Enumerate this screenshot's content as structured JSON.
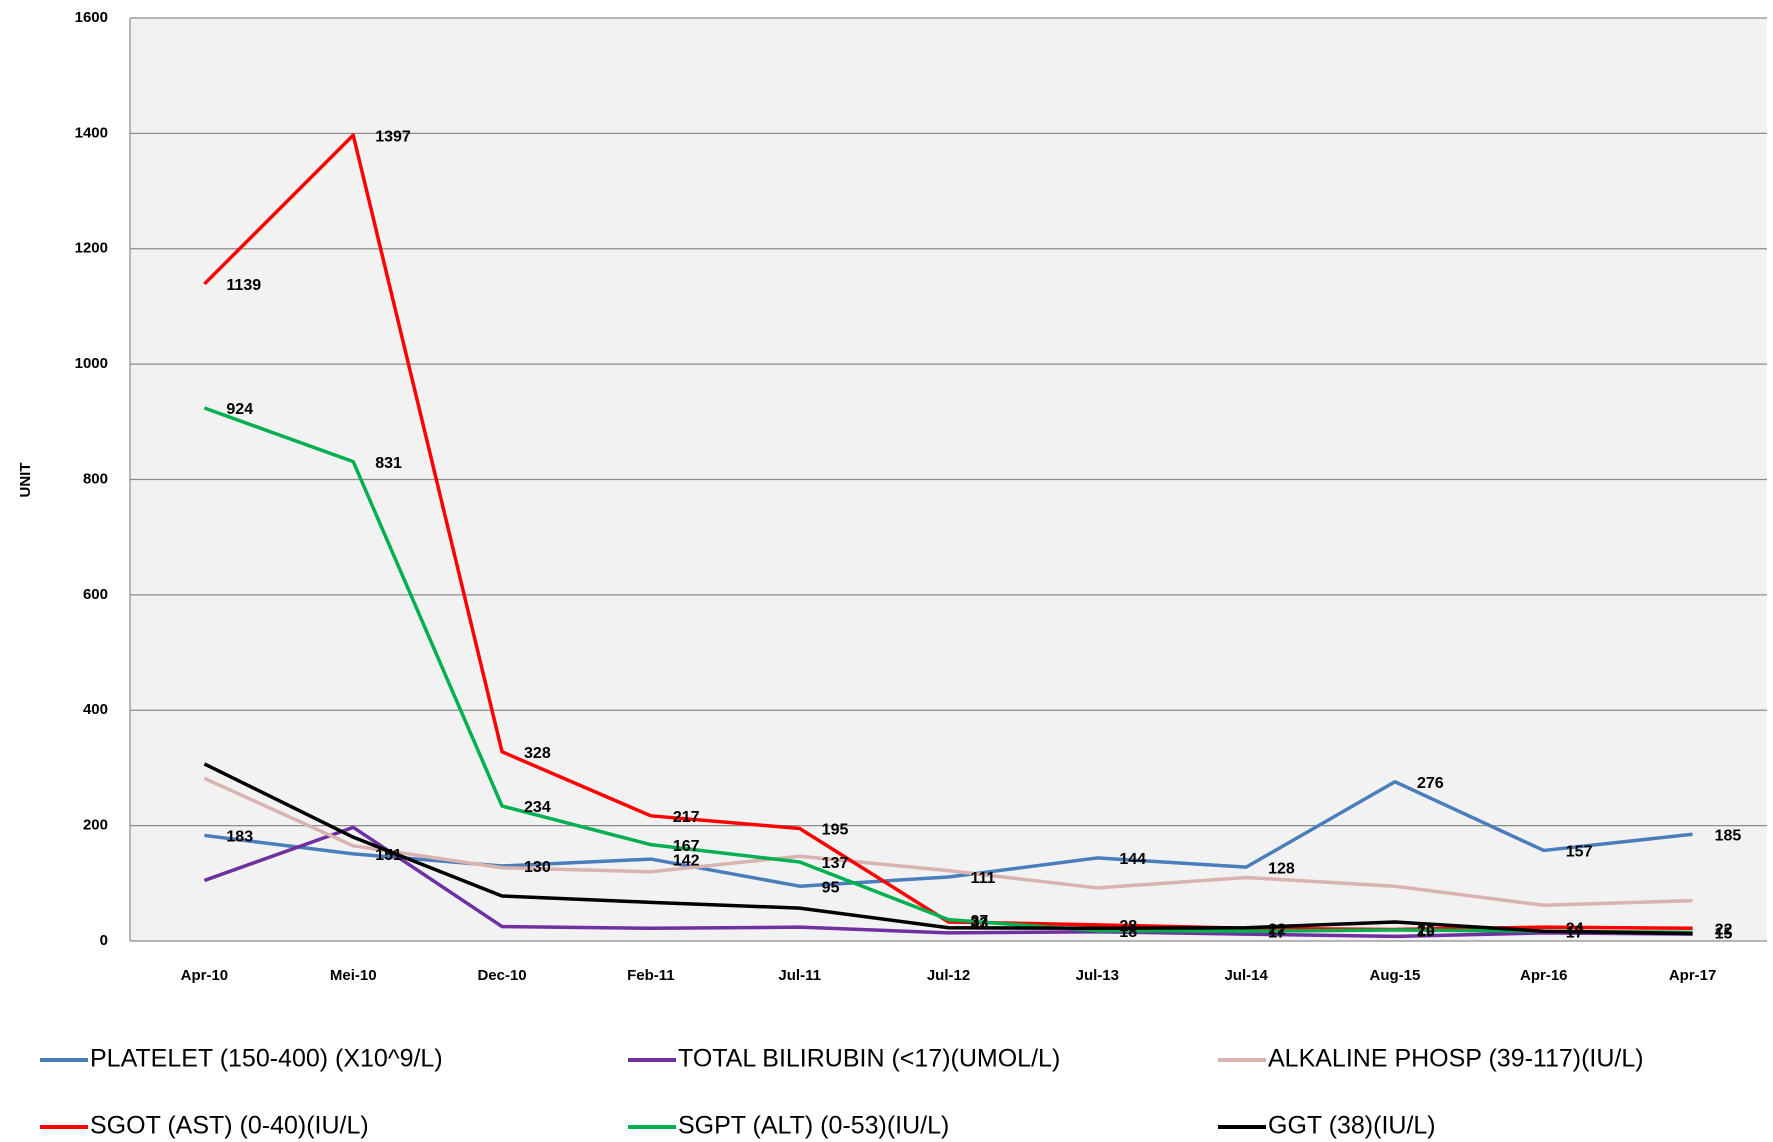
{
  "chart_data": {
    "type": "line",
    "y_label": "UNIT",
    "categories": [
      "Apr-10",
      "Mei-10",
      "Dec-10",
      "Feb-11",
      "Jul-11",
      "Jul-12",
      "Jul-13",
      "Jul-14",
      "Aug-15",
      "Apr-16",
      "Apr-17"
    ],
    "ylim": [
      0,
      1600
    ],
    "yticks": [
      0,
      200,
      400,
      600,
      800,
      1000,
      1200,
      1400,
      1600
    ],
    "grid": true,
    "legend": "bottom",
    "series": [
      {
        "name": "PLATELET (150-400) (X10^9/L)",
        "color": "#4a7ebb",
        "data_labels": true,
        "values": [
          183,
          151,
          130,
          142,
          95,
          111,
          144,
          128,
          276,
          157,
          185
        ]
      },
      {
        "name": "TOTAL BILIRUBIN (<17)(UMOL/L)",
        "color": "#7030a0",
        "data_labels": false,
        "values": [
          105,
          197,
          25,
          22,
          24,
          14,
          16,
          12,
          8,
          14,
          12
        ]
      },
      {
        "name": "ALKALINE PHOSP (39-117)(IU/L)",
        "color": "#d9b3b0",
        "data_labels": false,
        "values": [
          282,
          165,
          127,
          120,
          147,
          122,
          92,
          110,
          95,
          62,
          70
        ]
      },
      {
        "name": "SGOT (AST) (0-40)(IU/L)",
        "color": "#ff0000",
        "data_labels": true,
        "values": [
          1139,
          1397,
          328,
          217,
          195,
          33,
          28,
          22,
          20,
          24,
          22
        ]
      },
      {
        "name": "SGPT (ALT) (0-53)(IU/L)",
        "color": "#00b050",
        "data_labels": true,
        "values": [
          924,
          831,
          234,
          167,
          137,
          37,
          18,
          17,
          19,
          17,
          15
        ]
      },
      {
        "name": "GGT (38)(IU/L)",
        "color": "#000000",
        "data_labels": false,
        "values": [
          307,
          180,
          78,
          67,
          57,
          23,
          22,
          23,
          33,
          17,
          13
        ]
      }
    ]
  }
}
